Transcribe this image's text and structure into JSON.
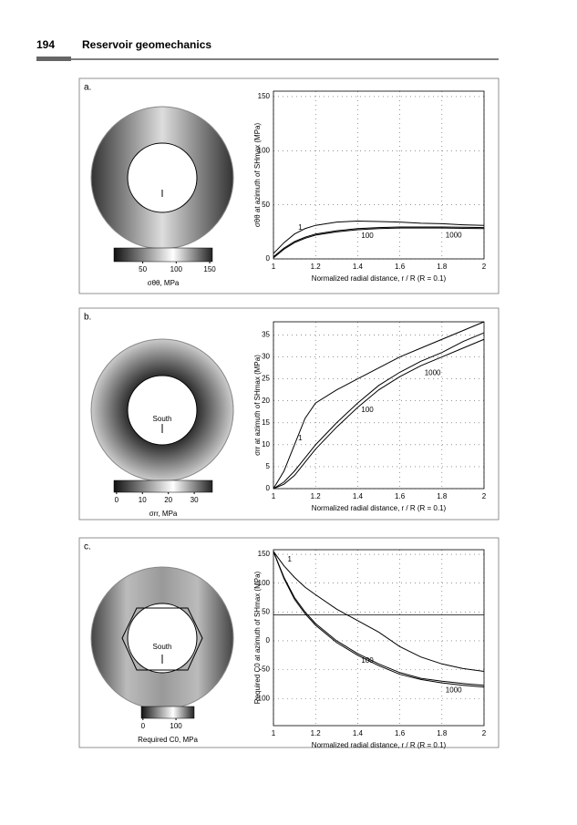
{
  "header": {
    "page_number": "194",
    "title": "Reservoir geomechanics"
  },
  "figures": [
    {
      "label": "a.",
      "colorbar": {
        "lim": [
          7,
          154
        ],
        "ticks": [
          50,
          100,
          150
        ],
        "label": "σθθ, MPa"
      }
    },
    {
      "label": "b.",
      "annotation": "South",
      "colorbar": {
        "lim": [
          -1,
          37
        ],
        "ticks": [
          0,
          10,
          20,
          30
        ],
        "label": "σrr, MPa"
      }
    },
    {
      "label": "c.",
      "annotation": "South",
      "colorbar": {
        "lim": [
          -5,
          155
        ],
        "ticks": [
          0,
          100
        ],
        "label": "Required C0, MPa"
      }
    }
  ],
  "chart_data": [
    {
      "type": "line",
      "ylabel": "σθθ at azimuth of SHmax (MPa)",
      "xlabel": "Normalized radial distance,  r / R   (R = 0.1)",
      "x": [
        1,
        1.05,
        1.1,
        1.15,
        1.2,
        1.3,
        1.4,
        1.5,
        1.6,
        1.7,
        1.8,
        1.9,
        2
      ],
      "xlim": [
        1,
        2
      ],
      "xticks": [
        1,
        1.2,
        1.4,
        1.6,
        1.8,
        2
      ],
      "ylim": [
        0,
        155
      ],
      "yticks": [
        0,
        50,
        100,
        150
      ],
      "grid": true,
      "series": [
        {
          "name": "1",
          "color": "#000000",
          "values": [
            5,
            15,
            23,
            28,
            31,
            34,
            35,
            34.5,
            34,
            33,
            32.5,
            31.5,
            31
          ]
        },
        {
          "name": "100",
          "color": "#000000",
          "values": [
            2,
            10,
            16,
            20,
            23,
            26,
            28,
            29,
            29.5,
            29.5,
            29.5,
            29.3,
            29
          ]
        },
        {
          "name": "1000",
          "color": "#000000",
          "values": [
            1,
            9,
            15,
            19,
            22,
            25,
            27,
            28,
            28.5,
            28.5,
            28.5,
            28.2,
            28
          ]
        }
      ]
    },
    {
      "type": "line",
      "ylabel": "σrr at azimuth of SHmax (MPa)",
      "xlabel": "Normalized radial distance,  r / R   (R = 0.1)",
      "x": [
        1,
        1.05,
        1.1,
        1.15,
        1.2,
        1.3,
        1.4,
        1.5,
        1.6,
        1.7,
        1.8,
        1.9,
        2
      ],
      "xlim": [
        1,
        2
      ],
      "xticks": [
        1,
        1.2,
        1.4,
        1.6,
        1.8,
        2
      ],
      "ylim": [
        0,
        38
      ],
      "yticks": [
        0,
        5,
        10,
        15,
        20,
        25,
        30,
        35
      ],
      "grid": true,
      "series": [
        {
          "name": "1",
          "color": "#000000",
          "values": [
            0,
            4,
            10,
            16,
            19.5,
            22.5,
            25,
            27.5,
            30,
            32,
            34,
            36,
            38
          ]
        },
        {
          "name": "100",
          "color": "#000000",
          "values": [
            0,
            1.5,
            4,
            7,
            10,
            15,
            19.5,
            23.5,
            26.5,
            29,
            31,
            33.5,
            35.5
          ]
        },
        {
          "name": "1000",
          "color": "#000000",
          "values": [
            0,
            1,
            3,
            6,
            9,
            14,
            18.5,
            22.5,
            25.5,
            28,
            30,
            32,
            34
          ]
        }
      ]
    },
    {
      "type": "line",
      "ylabel": "Required C0 at azimuth of SHmax (MPa)",
      "xlabel": "Normalized radial distance,  r / R   (R = 0.1)",
      "x": [
        1,
        1.05,
        1.1,
        1.15,
        1.2,
        1.3,
        1.4,
        1.5,
        1.6,
        1.7,
        1.8,
        1.9,
        2
      ],
      "xlim": [
        1,
        2
      ],
      "xticks": [
        1,
        1.2,
        1.4,
        1.6,
        1.8,
        2
      ],
      "ylim": [
        -147,
        158
      ],
      "yticks": [
        -100,
        -50,
        0,
        50,
        100,
        150
      ],
      "grid": true,
      "reference_line": 45,
      "series": [
        {
          "name": "1",
          "color": "#000000",
          "values": [
            155,
            130,
            110,
            93,
            80,
            55,
            35,
            15,
            -10,
            -28,
            -40,
            -48,
            -53
          ]
        },
        {
          "name": "100",
          "color": "#000000",
          "values": [
            155,
            110,
            75,
            50,
            30,
            0,
            -22,
            -40,
            -55,
            -65,
            -70,
            -74,
            -77
          ]
        },
        {
          "name": "1000",
          "color": "#000000",
          "values": [
            155,
            108,
            72,
            47,
            27,
            -3,
            -25,
            -43,
            -58,
            -67,
            -73,
            -77,
            -80
          ]
        }
      ]
    }
  ]
}
